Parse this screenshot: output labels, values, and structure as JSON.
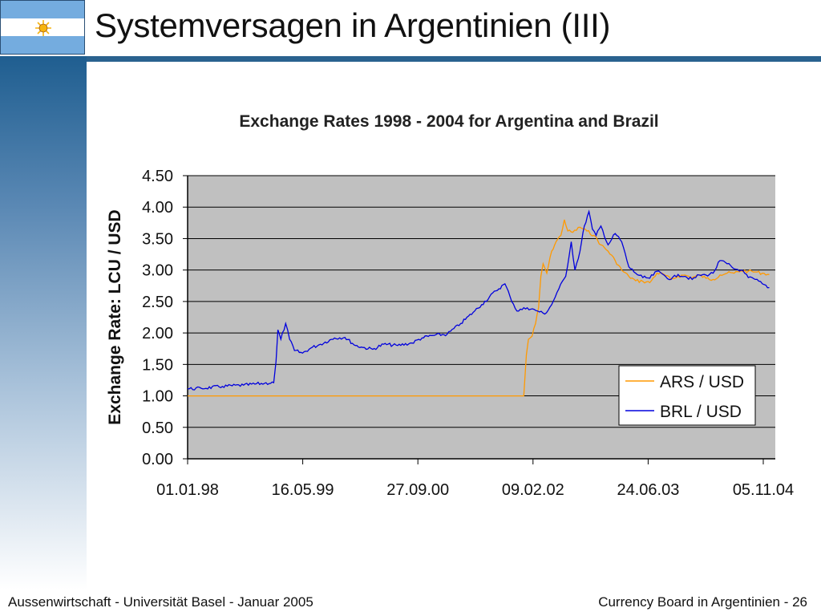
{
  "slide": {
    "title": "Systemversagen in Argentinien (III)",
    "footer_left": "Aussenwirtschaft - Universität Basel - Januar 2005",
    "footer_right": "Currency Board in Argentinien - 26",
    "accent_color": "#2a628f",
    "flag_icon": "argentina-flag-icon"
  },
  "chart_data": {
    "type": "line",
    "title": "Exchange Rates  1998 - 2004 for Argentina and Brazil",
    "xlabel": "",
    "ylabel": "Exchange Rate: LCU / USD",
    "x_ticks": [
      "01.01.98",
      "16.05.99",
      "27.09.00",
      "09.02.02",
      "24.06.03",
      "05.11.04"
    ],
    "xlim": [
      "1998-01-01",
      "2004-12-10"
    ],
    "ylim": [
      0,
      4.5
    ],
    "y_ticks": [
      0.0,
      0.5,
      1.0,
      1.5,
      2.0,
      2.5,
      3.0,
      3.5,
      4.0,
      4.5
    ],
    "grid": "horizontal",
    "background": "#c0c0c0",
    "legend_position": "bottom-right",
    "series": [
      {
        "name": "ARS / USD",
        "color": "#ff9900",
        "points": [
          [
            "1998-01-01",
            1.0
          ],
          [
            "2001-12-31",
            1.0
          ],
          [
            "2002-01-11",
            1.65
          ],
          [
            "2002-01-20",
            1.9
          ],
          [
            "2002-02-05",
            1.95
          ],
          [
            "2002-02-20",
            2.15
          ],
          [
            "2002-03-05",
            2.4
          ],
          [
            "2002-03-15",
            2.9
          ],
          [
            "2002-03-25",
            3.1
          ],
          [
            "2002-04-10",
            2.95
          ],
          [
            "2002-05-01",
            3.3
          ],
          [
            "2002-05-20",
            3.45
          ],
          [
            "2002-06-10",
            3.55
          ],
          [
            "2002-06-25",
            3.8
          ],
          [
            "2002-07-10",
            3.62
          ],
          [
            "2002-08-01",
            3.6
          ],
          [
            "2002-09-01",
            3.68
          ],
          [
            "2002-10-01",
            3.62
          ],
          [
            "2002-11-01",
            3.55
          ],
          [
            "2002-12-01",
            3.4
          ],
          [
            "2003-01-01",
            3.3
          ],
          [
            "2003-02-01",
            3.15
          ],
          [
            "2003-03-01",
            3.0
          ],
          [
            "2003-04-01",
            2.9
          ],
          [
            "2003-05-01",
            2.83
          ],
          [
            "2003-06-01",
            2.82
          ],
          [
            "2003-07-01",
            2.8
          ],
          [
            "2003-08-01",
            2.95
          ],
          [
            "2003-09-01",
            2.93
          ],
          [
            "2003-10-01",
            2.85
          ],
          [
            "2003-11-01",
            2.9
          ],
          [
            "2003-12-01",
            2.92
          ],
          [
            "2004-01-01",
            2.88
          ],
          [
            "2004-02-01",
            2.92
          ],
          [
            "2004-03-01",
            2.87
          ],
          [
            "2004-04-01",
            2.85
          ],
          [
            "2004-05-01",
            2.92
          ],
          [
            "2004-06-01",
            2.95
          ],
          [
            "2004-07-01",
            2.95
          ],
          [
            "2004-08-01",
            2.99
          ],
          [
            "2004-09-01",
            2.98
          ],
          [
            "2004-10-01",
            2.97
          ],
          [
            "2004-11-01",
            2.95
          ],
          [
            "2004-12-01",
            2.93
          ]
        ]
      },
      {
        "name": "BRL / USD",
        "color": "#0000dd",
        "points": [
          [
            "1998-01-01",
            1.11
          ],
          [
            "1998-03-01",
            1.12
          ],
          [
            "1998-06-01",
            1.15
          ],
          [
            "1998-09-01",
            1.17
          ],
          [
            "1998-12-01",
            1.2
          ],
          [
            "1999-01-10",
            1.21
          ],
          [
            "1999-01-20",
            1.55
          ],
          [
            "1999-01-28",
            2.05
          ],
          [
            "1999-02-10",
            1.9
          ],
          [
            "1999-03-03",
            2.15
          ],
          [
            "1999-03-20",
            1.9
          ],
          [
            "1999-04-10",
            1.72
          ],
          [
            "1999-05-15",
            1.68
          ],
          [
            "1999-06-20",
            1.76
          ],
          [
            "1999-08-01",
            1.82
          ],
          [
            "1999-10-01",
            1.92
          ],
          [
            "1999-11-15",
            1.93
          ],
          [
            "1999-12-31",
            1.8
          ],
          [
            "2000-02-01",
            1.77
          ],
          [
            "2000-03-15",
            1.74
          ],
          [
            "2000-05-01",
            1.82
          ],
          [
            "2000-07-01",
            1.8
          ],
          [
            "2000-09-01",
            1.84
          ],
          [
            "2000-10-15",
            1.92
          ],
          [
            "2000-12-01",
            1.96
          ],
          [
            "2001-02-01",
            1.98
          ],
          [
            "2001-04-01",
            2.15
          ],
          [
            "2001-06-01",
            2.35
          ],
          [
            "2001-07-01",
            2.45
          ],
          [
            "2001-09-01",
            2.67
          ],
          [
            "2001-10-10",
            2.78
          ],
          [
            "2001-11-01",
            2.58
          ],
          [
            "2001-12-01",
            2.35
          ],
          [
            "2002-01-15",
            2.4
          ],
          [
            "2002-03-01",
            2.35
          ],
          [
            "2002-04-01",
            2.3
          ],
          [
            "2002-05-01",
            2.45
          ],
          [
            "2002-06-01",
            2.7
          ],
          [
            "2002-07-01",
            2.9
          ],
          [
            "2002-07-25",
            3.45
          ],
          [
            "2002-08-10",
            3.0
          ],
          [
            "2002-09-01",
            3.3
          ],
          [
            "2002-09-20",
            3.7
          ],
          [
            "2002-10-10",
            3.93
          ],
          [
            "2002-10-25",
            3.65
          ],
          [
            "2002-11-10",
            3.55
          ],
          [
            "2002-12-01",
            3.7
          ],
          [
            "2003-01-01",
            3.4
          ],
          [
            "2003-02-01",
            3.58
          ],
          [
            "2003-03-01",
            3.45
          ],
          [
            "2003-04-01",
            3.05
          ],
          [
            "2003-05-01",
            2.95
          ],
          [
            "2003-06-01",
            2.88
          ],
          [
            "2003-07-01",
            2.87
          ],
          [
            "2003-08-01",
            2.98
          ],
          [
            "2003-09-01",
            2.92
          ],
          [
            "2003-10-01",
            2.85
          ],
          [
            "2003-11-01",
            2.93
          ],
          [
            "2003-12-01",
            2.9
          ],
          [
            "2004-01-01",
            2.85
          ],
          [
            "2004-02-01",
            2.92
          ],
          [
            "2004-03-01",
            2.92
          ],
          [
            "2004-04-01",
            2.95
          ],
          [
            "2004-05-01",
            3.15
          ],
          [
            "2004-06-01",
            3.1
          ],
          [
            "2004-07-01",
            3.02
          ],
          [
            "2004-08-01",
            3.0
          ],
          [
            "2004-09-01",
            2.88
          ],
          [
            "2004-10-01",
            2.85
          ],
          [
            "2004-11-01",
            2.78
          ],
          [
            "2004-12-01",
            2.72
          ]
        ]
      }
    ]
  }
}
